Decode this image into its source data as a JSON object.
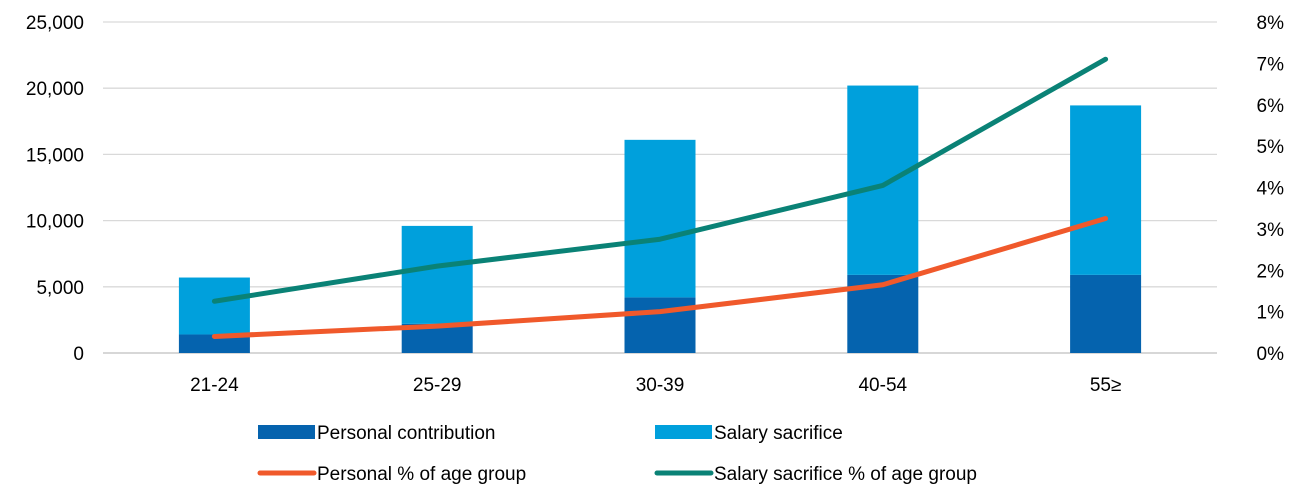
{
  "chart_data": {
    "type": "bar",
    "stacked": true,
    "categories": [
      "21-24",
      "25-29",
      "30-39",
      "40-54",
      "55≥"
    ],
    "series": [
      {
        "name": "Personal contribution",
        "type": "bar",
        "axis": "left",
        "color": "#0563AE",
        "values": [
          1400,
          2200,
          4200,
          5900,
          5900
        ]
      },
      {
        "name": "Salary sacrifice",
        "type": "bar",
        "axis": "left",
        "color": "#00A0DC",
        "values": [
          4300,
          7400,
          11900,
          14300,
          12800
        ]
      },
      {
        "name": "Personal % of age group",
        "type": "line",
        "axis": "right",
        "color": "#F0592B",
        "values": [
          0.4,
          0.65,
          1.0,
          1.65,
          3.25
        ]
      },
      {
        "name": "Salary sacrifice % of age group",
        "type": "line",
        "axis": "right",
        "color": "#0A8276",
        "values": [
          1.25,
          2.1,
          2.75,
          4.05,
          7.1
        ]
      }
    ],
    "y_left": {
      "min": 0,
      "max": 25000,
      "step": 5000,
      "ticks": [
        "0",
        "5,000",
        "10,000",
        "15,000",
        "20,000",
        "25,000"
      ]
    },
    "y_right": {
      "min": 0,
      "max": 8,
      "step": 1,
      "ticks": [
        "0%",
        "1%",
        "2%",
        "3%",
        "4%",
        "5%",
        "6%",
        "7%",
        "8%"
      ]
    },
    "grid": true,
    "legend_position": "bottom"
  }
}
